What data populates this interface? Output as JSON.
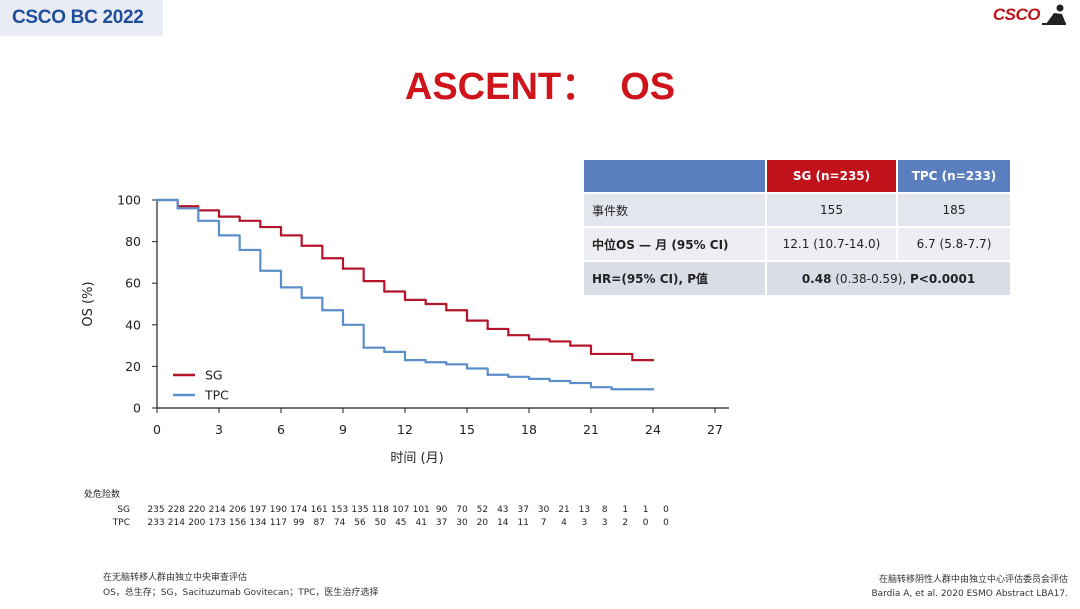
{
  "header": {
    "conference": "CSCO BC 2022",
    "logo_text": "CSCO"
  },
  "slide_title": "ASCENT：  OS",
  "chart_data": {
    "type": "line",
    "xlabel": "时间 (月)",
    "ylabel": "OS (%)",
    "xlim": [
      0,
      27
    ],
    "ylim": [
      0,
      100
    ],
    "x_ticks": [
      0,
      3,
      6,
      9,
      12,
      15,
      18,
      21,
      24,
      27
    ],
    "y_ticks": [
      0,
      20,
      40,
      60,
      80,
      100
    ],
    "grid": false,
    "legend_position": "bottom-left",
    "series": [
      {
        "name": "SG",
        "color": "#b5152b",
        "x": [
          0,
          1,
          2,
          3,
          4,
          5,
          6,
          7,
          8,
          9,
          10,
          11,
          12,
          13,
          14,
          15,
          16,
          17,
          18,
          19,
          20,
          21,
          22,
          23,
          24
        ],
        "y": [
          100,
          97,
          95,
          92,
          90,
          87,
          83,
          78,
          72,
          67,
          61,
          56,
          52,
          50,
          47,
          42,
          38,
          35,
          33,
          32,
          30,
          26,
          26,
          23,
          23
        ]
      },
      {
        "name": "TPC",
        "color": "#5b8fc9",
        "x": [
          0,
          1,
          2,
          3,
          4,
          5,
          6,
          7,
          8,
          9,
          10,
          11,
          12,
          13,
          14,
          15,
          16,
          17,
          18,
          19,
          20,
          21,
          22,
          23,
          24
        ],
        "y": [
          100,
          96,
          90,
          83,
          76,
          66,
          58,
          53,
          47,
          40,
          29,
          27,
          23,
          22,
          21,
          19,
          16,
          15,
          14,
          13,
          12,
          10,
          9,
          9,
          9
        ]
      }
    ]
  },
  "risk_table": {
    "title": "处危险数",
    "rows": [
      {
        "label": "SG",
        "values": [
          "235",
          "228",
          "220",
          "214",
          "206",
          "197",
          "190",
          "174",
          "161",
          "153",
          "135",
          "118",
          "107",
          "101",
          "90",
          "70",
          "52",
          "43",
          "37",
          "30",
          "21",
          "13",
          "8",
          "1",
          "1",
          "0"
        ]
      },
      {
        "label": "TPC",
        "values": [
          "233",
          "214",
          "200",
          "173",
          "156",
          "134",
          "117",
          "99",
          "87",
          "74",
          "56",
          "50",
          "45",
          "41",
          "37",
          "30",
          "20",
          "14",
          "11",
          "7",
          "4",
          "3",
          "3",
          "2",
          "0",
          "0"
        ]
      }
    ]
  },
  "stats_table": {
    "col_sg": "SG (n=235)",
    "col_tpc": "TPC (n=233)",
    "events_label": "事件数",
    "events_sg": "155",
    "events_tpc": "185",
    "median_label": "中位OS — 月 (95% CI)",
    "median_sg": "12.1 (10.7-14.0)",
    "median_tpc": "6.7 (5.8-7.7)",
    "hr_label": "HR=(95% CI), P值",
    "hr_value_bold": "0.48",
    "hr_value_ci": " (0.38-0.59), ",
    "hr_value_p": "P<0.0001"
  },
  "footnotes": {
    "left_line1": "在无脑转移人群由独立中央审查评估",
    "left_line2": "OS，总生存；SG，Sacituzumab Govitecan；TPC，医生治疗选择",
    "right_line1": "在脑转移阴性人群中由独立中心评估委员会评估",
    "right_line2": "Bardia A, et al. 2020 ESMO Abstract LBA17."
  }
}
